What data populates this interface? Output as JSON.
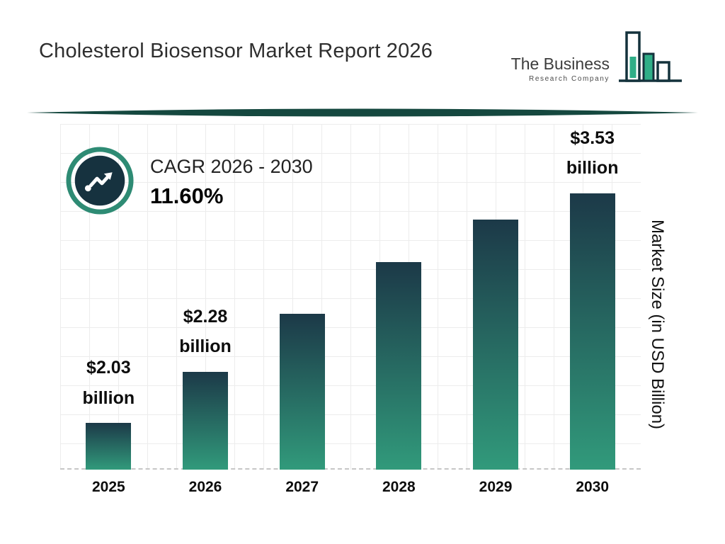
{
  "header": {
    "title": "Cholesterol Biosensor Market Report 2026",
    "logo": {
      "line1": "The Business",
      "line2": "Research Company"
    }
  },
  "cagr": {
    "label": "CAGR 2026 - 2030",
    "value": "11.60%"
  },
  "axis": {
    "y_label": "Market Size (in USD Billion)"
  },
  "chart_data": {
    "type": "bar",
    "title": "Cholesterol Biosensor Market Report 2026",
    "categories": [
      "2025",
      "2026",
      "2027",
      "2028",
      "2029",
      "2030"
    ],
    "values": [
      2.03,
      2.28,
      2.54,
      2.84,
      3.16,
      3.53
    ],
    "value_labels": [
      "$2.03 billion",
      "$2.28 billion",
      null,
      null,
      null,
      "$3.53 billion"
    ],
    "ylabel": "Market Size (in USD Billion)",
    "cagr_label": "CAGR 2026 - 2030",
    "cagr_value": "11.60%",
    "grid": true,
    "legend": false,
    "bar_height_pct": [
      13.5,
      28.3,
      45.1,
      60.0,
      72.3,
      80.0
    ],
    "bar_gradient_top": "#1c3948",
    "bar_gradient_bottom": "#319a7b"
  },
  "colors": {
    "accent_teal": "#2e8b74",
    "dark_navy": "#16323f",
    "divider": "#15483f",
    "logo_teal": "#2fae87",
    "logo_dark": "#14323c"
  }
}
